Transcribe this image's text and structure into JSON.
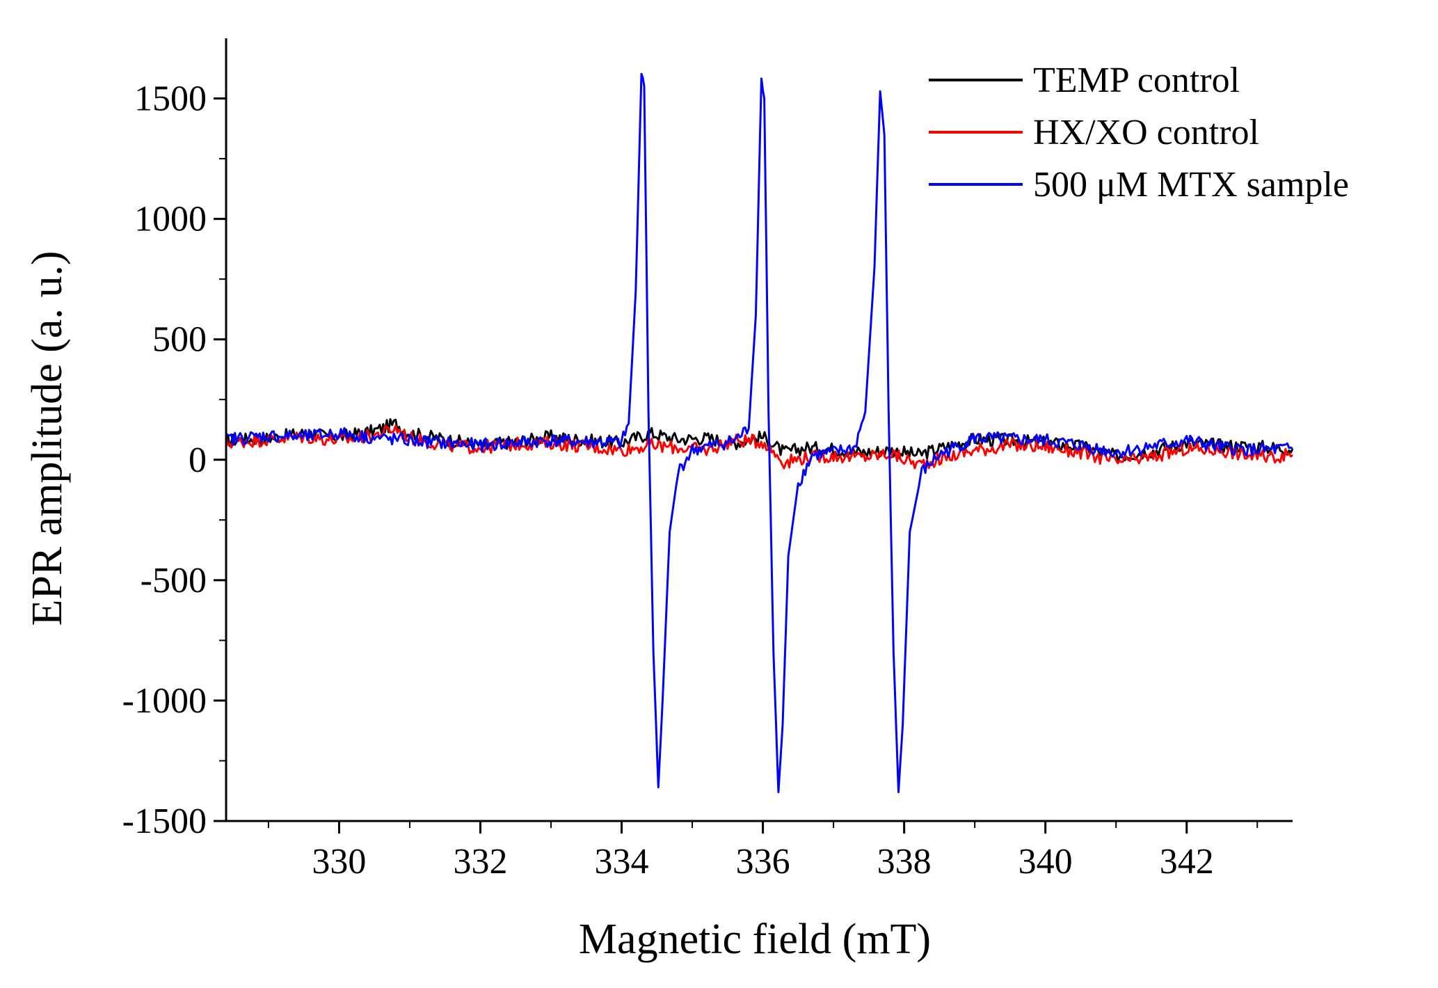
{
  "chart_data": {
    "type": "line",
    "title": "",
    "xlabel": "Magnetic field (mT)",
    "ylabel": "EPR amplitude (a. u.)",
    "xlim": [
      328.4,
      343.5
    ],
    "ylim": [
      -1500,
      1750
    ],
    "x_ticks": [
      330,
      332,
      334,
      336,
      338,
      340,
      342
    ],
    "x_tick_labels": [
      "330",
      "332",
      "334",
      "336",
      "338",
      "340",
      "342"
    ],
    "y_ticks": [
      -1500,
      -1000,
      -500,
      0,
      500,
      1000,
      1500
    ],
    "y_tick_labels": [
      "-1500",
      "-1000",
      "-500",
      "0",
      "500",
      "1000",
      "1500"
    ],
    "grid": false,
    "legend_position": "top-right",
    "series": [
      {
        "name": "TEMP control",
        "color": "#000000",
        "x": [
          328.4,
          329.0,
          329.5,
          330.0,
          330.5,
          330.8,
          331.0,
          331.5,
          332.0,
          332.5,
          333.0,
          333.5,
          334.0,
          334.4,
          334.8,
          335.2,
          335.6,
          336.0,
          336.3,
          336.6,
          337.0,
          337.4,
          337.8,
          338.2,
          338.6,
          339.0,
          339.5,
          340.0,
          340.5,
          341.0,
          341.5,
          342.0,
          342.5,
          343.0,
          343.5
        ],
        "values": [
          80,
          90,
          110,
          95,
          120,
          150,
          110,
          85,
          60,
          75,
          95,
          80,
          70,
          110,
          85,
          90,
          70,
          95,
          30,
          50,
          45,
          30,
          40,
          20,
          55,
          85,
          80,
          70,
          55,
          15,
          35,
          70,
          60,
          55,
          45
        ]
      },
      {
        "name": "HX/XO control",
        "color": "#ff0000",
        "x": [
          328.4,
          329.0,
          329.5,
          330.0,
          330.5,
          330.8,
          331.0,
          331.5,
          332.0,
          332.5,
          333.0,
          333.5,
          334.0,
          334.4,
          334.8,
          335.2,
          335.6,
          336.0,
          336.3,
          336.6,
          337.0,
          337.4,
          337.8,
          338.2,
          338.6,
          339.0,
          339.5,
          340.0,
          340.5,
          341.0,
          341.5,
          342.0,
          342.5,
          343.0,
          343.5
        ],
        "values": [
          70,
          85,
          95,
          80,
          100,
          130,
          90,
          60,
          50,
          65,
          70,
          55,
          40,
          60,
          50,
          40,
          80,
          75,
          -10,
          10,
          15,
          10,
          25,
          -20,
          10,
          40,
          60,
          55,
          30,
          -10,
          10,
          45,
          40,
          10,
          20
        ]
      },
      {
        "name": "500 μM MTX sample",
        "color": "#0000ff",
        "x": [
          328.4,
          329.0,
          329.5,
          330.0,
          330.5,
          331.0,
          331.5,
          332.0,
          332.5,
          333.0,
          333.5,
          334.0,
          334.1,
          334.2,
          334.28,
          334.32,
          334.38,
          334.45,
          334.52,
          334.58,
          334.68,
          334.8,
          335.0,
          335.3,
          335.6,
          335.8,
          335.9,
          335.98,
          336.02,
          336.08,
          336.15,
          336.22,
          336.28,
          336.36,
          336.5,
          336.7,
          337.0,
          337.3,
          337.45,
          337.58,
          337.66,
          337.72,
          337.78,
          337.85,
          337.92,
          337.98,
          338.08,
          338.25,
          338.5,
          339.0,
          339.5,
          340.0,
          340.5,
          341.0,
          341.5,
          342.0,
          342.5,
          343.0,
          343.5
        ],
        "values": [
          85,
          100,
          95,
          110,
          90,
          80,
          70,
          60,
          70,
          80,
          75,
          70,
          150,
          700,
          1600,
          1550,
          200,
          -800,
          -1360,
          -1000,
          -300,
          -50,
          40,
          60,
          80,
          130,
          600,
          1600,
          1500,
          200,
          -800,
          -1380,
          -1100,
          -400,
          -100,
          20,
          30,
          50,
          200,
          800,
          1530,
          1350,
          200,
          -800,
          -1380,
          -1100,
          -300,
          -50,
          20,
          90,
          85,
          80,
          60,
          30,
          55,
          80,
          50,
          40,
          45
        ]
      }
    ]
  }
}
